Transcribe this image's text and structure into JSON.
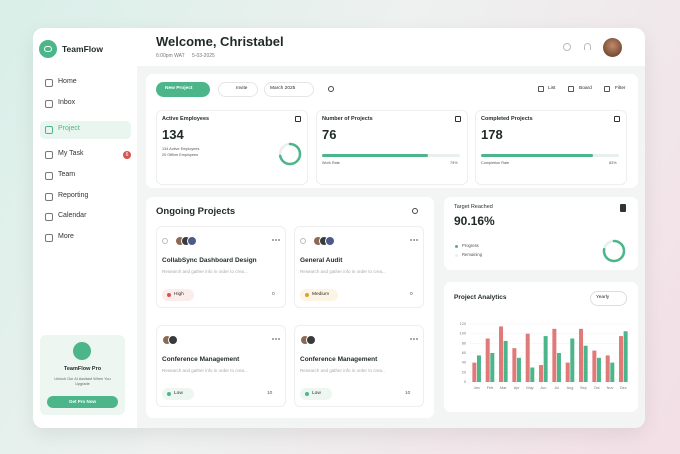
{
  "brand": "TeamFlow",
  "nav": [
    "Home",
    "Inbox",
    "Project",
    "My Task",
    "Team",
    "Reporting",
    "Calendar",
    "More"
  ],
  "nav_badge": "6",
  "promo": {
    "title": "TeamFlow Pro",
    "text": "Unlock Our AI Assitant When You Upgrade",
    "button": "Get Pro Now"
  },
  "header": {
    "title": "Welcome, Christabel",
    "time": "6:00pm WAT",
    "date": "5-03-2025"
  },
  "toolbar": {
    "new": "New Project",
    "invite": "Invite",
    "month": "March 2025",
    "views": [
      "List",
      "Board",
      "Filter"
    ]
  },
  "stats": [
    {
      "title": "Active Employees",
      "value": "134",
      "lines": [
        "134 Active Employees",
        "20 Offline Employees"
      ]
    },
    {
      "title": "Number of Projects",
      "value": "76",
      "caption": "Work Rate",
      "rate": "79%"
    },
    {
      "title": "Completed Projects",
      "value": "178",
      "caption": "Completion Rate",
      "rate": "83%"
    }
  ],
  "ongoing": {
    "title": "Ongoing Projects",
    "cards": [
      {
        "name": "CollabSync Dashboard Design",
        "desc": "Research and gather info in order to crea...",
        "priority": "High",
        "count": "0"
      },
      {
        "name": "General Audit",
        "desc": "Research and gather info in order to crea...",
        "priority": "Medium",
        "count": "0"
      },
      {
        "name": "Conference Management",
        "desc": "Research and gather info in order to crea...",
        "priority": "Low",
        "count": "10"
      },
      {
        "name": "Conference Management",
        "desc": "Research and gather info in order to crea...",
        "priority": "Low",
        "count": "10"
      }
    ]
  },
  "target": {
    "title": "Target Reached",
    "value": "90.16%",
    "legend": [
      "Progress",
      "Remaining"
    ]
  },
  "chart_data": {
    "type": "bar",
    "title": "Project Analytics",
    "period": "Yearly",
    "categories": [
      "Jan",
      "Feb",
      "Mar",
      "Apr",
      "May",
      "Jun",
      "Jul",
      "Aug",
      "Sep",
      "Oct",
      "Nov",
      "Dec"
    ],
    "series": [
      {
        "color": "#e07a78",
        "values": [
          40,
          90,
          115,
          70,
          100,
          35,
          110,
          40,
          110,
          65,
          55,
          95
        ]
      },
      {
        "color": "#4cb68a",
        "values": [
          55,
          60,
          85,
          50,
          30,
          95,
          60,
          90,
          75,
          50,
          40,
          105
        ]
      }
    ],
    "ylim": [
      0,
      120
    ],
    "yticks": [
      0,
      20,
      40,
      60,
      80,
      100,
      120
    ]
  }
}
